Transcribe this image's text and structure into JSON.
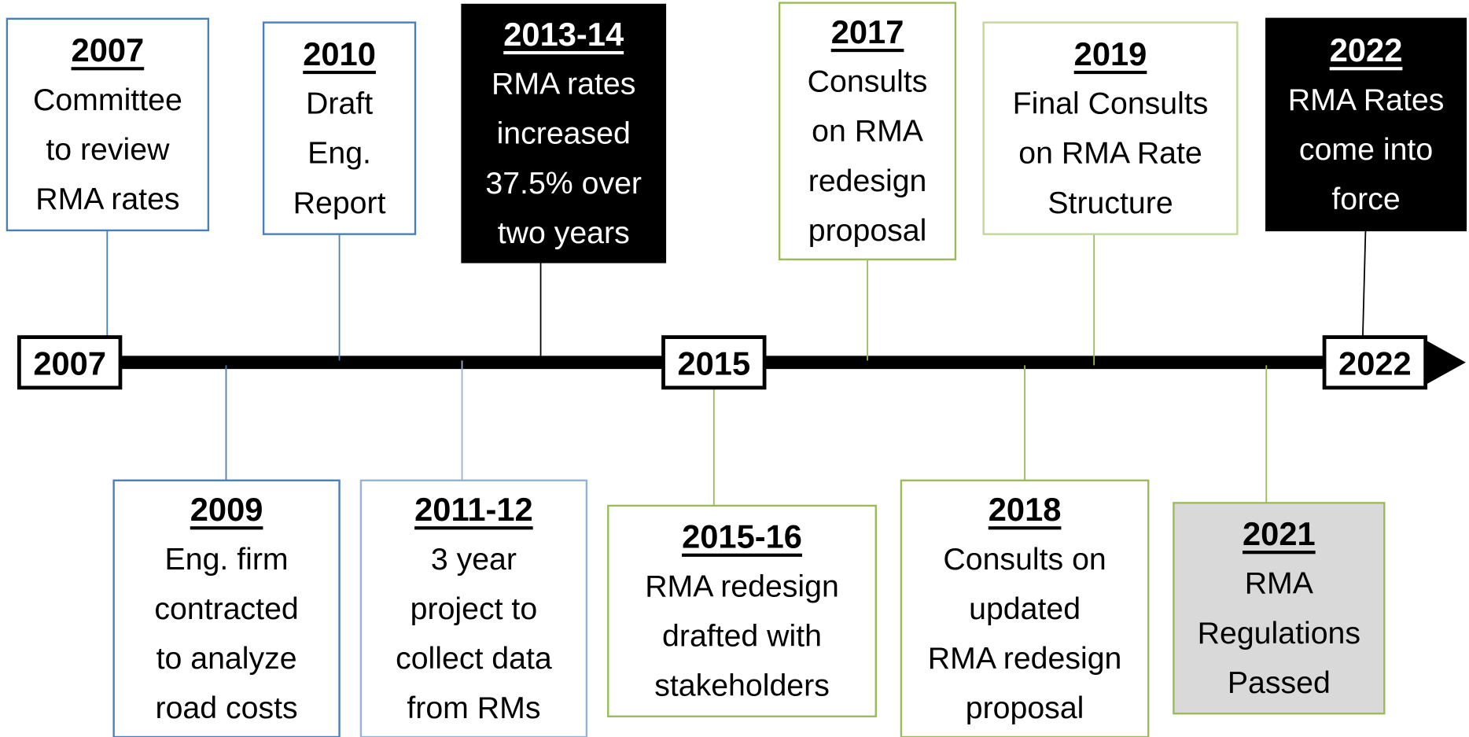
{
  "axis_labels": [
    "2007",
    "2015",
    "2022"
  ],
  "events": [
    {
      "year": "2007",
      "lines": [
        "Committee",
        "to review",
        "RMA rates"
      ]
    },
    {
      "year": "2010",
      "lines": [
        "Draft",
        "Eng.",
        "Report"
      ]
    },
    {
      "year": "2013-14",
      "lines": [
        "RMA rates",
        "increased",
        "37.5% over",
        "two years"
      ]
    },
    {
      "year": "2017",
      "lines": [
        "Consults",
        "on RMA",
        "redesign",
        "proposal"
      ]
    },
    {
      "year": "2019",
      "lines": [
        "Final Consults",
        "on RMA Rate",
        "Structure"
      ]
    },
    {
      "year": "2022",
      "lines": [
        "RMA Rates",
        "come into",
        "force"
      ]
    },
    {
      "year": "2009",
      "lines": [
        "Eng. firm",
        "contracted",
        "to analyze",
        "road costs"
      ]
    },
    {
      "year": "2011-12",
      "lines": [
        "3 year",
        "project to",
        "collect data",
        "from RMs"
      ]
    },
    {
      "year": "2015-16",
      "lines": [
        "RMA redesign",
        "drafted with",
        "stakeholders"
      ]
    },
    {
      "year": "2018",
      "lines": [
        "Consults on",
        "updated",
        "RMA redesign",
        "proposal"
      ]
    },
    {
      "year": "2021",
      "lines": [
        "RMA",
        "Regulations",
        "Passed"
      ]
    }
  ]
}
